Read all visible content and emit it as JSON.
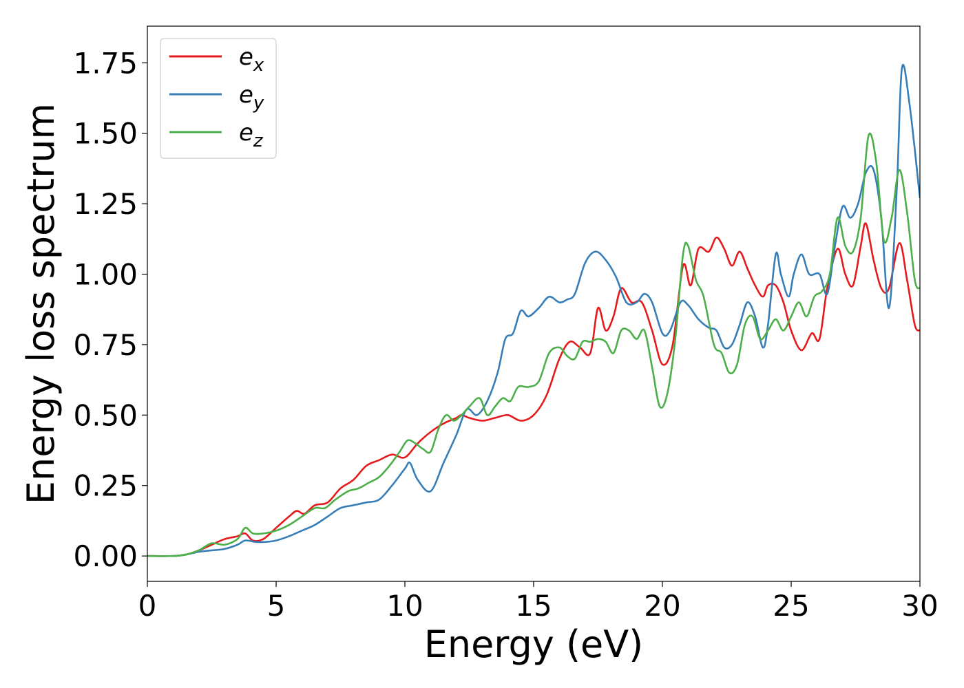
{
  "chart_data": {
    "type": "line",
    "title": "",
    "xlabel": "Energy (eV)",
    "ylabel": "Energy loss spectrum",
    "xlim": [
      0,
      30
    ],
    "ylim": [
      -0.09,
      1.88
    ],
    "xticks": [
      0,
      5,
      10,
      15,
      20,
      25,
      30
    ],
    "xtick_labels": [
      "0",
      "5",
      "10",
      "15",
      "20",
      "25",
      "30"
    ],
    "yticks": [
      0,
      0.25,
      0.5,
      0.75,
      1.0,
      1.25,
      1.5,
      1.75
    ],
    "ytick_labels": [
      "0.00",
      "0.25",
      "0.50",
      "0.75",
      "1.00",
      "1.25",
      "1.50",
      "1.75"
    ],
    "grid": false,
    "legend": {
      "position": "top-left"
    },
    "series": [
      {
        "name": "e_x",
        "label_base": "e",
        "label_sub": "x",
        "color": "#e41a1c",
        "x": [
          0,
          1,
          1.5,
          2,
          2.5,
          3,
          3.5,
          3.8,
          4.1,
          4.5,
          5,
          5.5,
          5.8,
          6.1,
          6.5,
          7,
          7.5,
          8,
          8.5,
          9,
          9.5,
          10,
          10.5,
          11,
          11.5,
          12,
          12.2,
          12.5,
          13,
          13.5,
          14,
          14.5,
          15,
          15.5,
          16,
          16.4,
          16.8,
          17.2,
          17.5,
          17.8,
          18.1,
          18.4,
          18.8,
          19.2,
          19.6,
          20,
          20.4,
          20.8,
          21.1,
          21.4,
          21.8,
          22.1,
          22.4,
          22.7,
          23,
          23.3,
          23.6,
          23.9,
          24.1,
          24.4,
          24.7,
          25,
          25.4,
          25.8,
          26.1,
          26.4,
          26.8,
          27.1,
          27.4,
          27.7,
          27.9,
          28.2,
          28.5,
          28.8,
          29.2,
          29.5,
          29.8,
          30
        ],
        "y": [
          0,
          0,
          0.005,
          0.02,
          0.04,
          0.06,
          0.07,
          0.08,
          0.055,
          0.06,
          0.1,
          0.14,
          0.16,
          0.15,
          0.18,
          0.19,
          0.24,
          0.27,
          0.32,
          0.34,
          0.36,
          0.35,
          0.4,
          0.44,
          0.47,
          0.49,
          0.5,
          0.49,
          0.48,
          0.49,
          0.5,
          0.48,
          0.5,
          0.57,
          0.7,
          0.76,
          0.74,
          0.72,
          0.88,
          0.8,
          0.85,
          0.95,
          0.9,
          0.9,
          0.8,
          0.68,
          0.75,
          1.03,
          0.96,
          1.09,
          1.08,
          1.13,
          1.09,
          1.03,
          1.08,
          1.02,
          0.96,
          0.92,
          0.96,
          0.96,
          0.9,
          0.8,
          0.73,
          0.79,
          0.77,
          0.95,
          1.09,
          1.0,
          0.96,
          1.1,
          1.18,
          1.05,
          0.95,
          0.95,
          1.11,
          0.98,
          0.82,
          0.8
        ]
      },
      {
        "name": "e_y",
        "label_base": "e",
        "label_sub": "y",
        "color": "#377eb8",
        "x": [
          0,
          1,
          1.5,
          2,
          2.5,
          3,
          3.5,
          3.8,
          4.2,
          4.6,
          5,
          5.5,
          6,
          6.5,
          7,
          7.5,
          8,
          8.5,
          9,
          9.5,
          10,
          10.2,
          10.5,
          11,
          11.5,
          12,
          12.4,
          12.8,
          13.2,
          13.6,
          13.9,
          14.2,
          14.5,
          14.8,
          15.2,
          15.6,
          16,
          16.3,
          16.6,
          17,
          17.4,
          17.8,
          18.2,
          18.6,
          19,
          19.3,
          19.6,
          20,
          20.3,
          20.7,
          21,
          21.4,
          21.8,
          22.1,
          22.4,
          22.7,
          23,
          23.3,
          23.6,
          23.9,
          24.1,
          24.4,
          24.6,
          24.9,
          25.1,
          25.4,
          25.7,
          26.1,
          26.4,
          26.7,
          27,
          27.3,
          27.6,
          27.9,
          28.2,
          28.5,
          28.8,
          29.1,
          29.3,
          29.6,
          30
        ],
        "y": [
          0,
          0,
          0.005,
          0.015,
          0.02,
          0.025,
          0.04,
          0.055,
          0.05,
          0.05,
          0.055,
          0.07,
          0.09,
          0.11,
          0.14,
          0.17,
          0.18,
          0.19,
          0.2,
          0.25,
          0.31,
          0.33,
          0.27,
          0.23,
          0.33,
          0.43,
          0.52,
          0.5,
          0.55,
          0.65,
          0.77,
          0.79,
          0.87,
          0.85,
          0.88,
          0.92,
          0.9,
          0.91,
          0.93,
          1.04,
          1.08,
          1.05,
          0.99,
          0.9,
          0.9,
          0.93,
          0.9,
          0.79,
          0.8,
          0.9,
          0.89,
          0.84,
          0.81,
          0.8,
          0.74,
          0.75,
          0.82,
          0.9,
          0.85,
          0.74,
          0.82,
          1.07,
          1.0,
          0.92,
          1.0,
          1.07,
          1.0,
          1.0,
          0.93,
          1.1,
          1.24,
          1.2,
          1.25,
          1.36,
          1.37,
          1.2,
          0.88,
          1.3,
          1.73,
          1.6,
          1.27
        ]
      },
      {
        "name": "e_z",
        "label_base": "e",
        "label_sub": "z",
        "color": "#4daf4a",
        "x": [
          0,
          1,
          1.5,
          2,
          2.5,
          3,
          3.5,
          3.8,
          4.1,
          4.5,
          5,
          5.5,
          6,
          6.5,
          6.9,
          7.3,
          7.8,
          8.2,
          8.6,
          9,
          9.4,
          9.8,
          10.1,
          10.4,
          10.7,
          11,
          11.3,
          11.6,
          11.9,
          12.2,
          12.5,
          12.9,
          13.2,
          13.5,
          13.8,
          14.1,
          14.4,
          14.8,
          15.2,
          15.6,
          16,
          16.3,
          16.6,
          16.9,
          17.2,
          17.5,
          17.8,
          18.1,
          18.4,
          18.7,
          19,
          19.3,
          19.6,
          19.9,
          20.2,
          20.5,
          20.8,
          21,
          21.3,
          21.6,
          22,
          22.3,
          22.6,
          22.9,
          23.2,
          23.5,
          23.8,
          24.1,
          24.4,
          24.7,
          25,
          25.3,
          25.6,
          25.9,
          26.2,
          26.5,
          26.8,
          27.1,
          27.4,
          27.7,
          28,
          28.3,
          28.6,
          28.9,
          29.2,
          29.5,
          29.8,
          30
        ],
        "y": [
          0,
          0,
          0.005,
          0.02,
          0.045,
          0.04,
          0.06,
          0.1,
          0.08,
          0.08,
          0.09,
          0.11,
          0.14,
          0.17,
          0.17,
          0.2,
          0.23,
          0.24,
          0.26,
          0.28,
          0.32,
          0.37,
          0.41,
          0.4,
          0.38,
          0.37,
          0.45,
          0.5,
          0.48,
          0.5,
          0.53,
          0.56,
          0.5,
          0.53,
          0.56,
          0.55,
          0.6,
          0.6,
          0.62,
          0.72,
          0.74,
          0.71,
          0.7,
          0.76,
          0.76,
          0.77,
          0.76,
          0.72,
          0.8,
          0.8,
          0.77,
          0.8,
          0.67,
          0.53,
          0.58,
          0.77,
          1.07,
          1.1,
          0.98,
          0.92,
          0.75,
          0.72,
          0.65,
          0.68,
          0.82,
          0.85,
          0.77,
          0.8,
          0.84,
          0.8,
          0.85,
          0.9,
          0.85,
          0.92,
          0.94,
          1.0,
          1.2,
          1.1,
          1.08,
          1.2,
          1.49,
          1.4,
          1.12,
          1.2,
          1.37,
          1.22,
          0.98,
          0.95
        ]
      }
    ]
  }
}
